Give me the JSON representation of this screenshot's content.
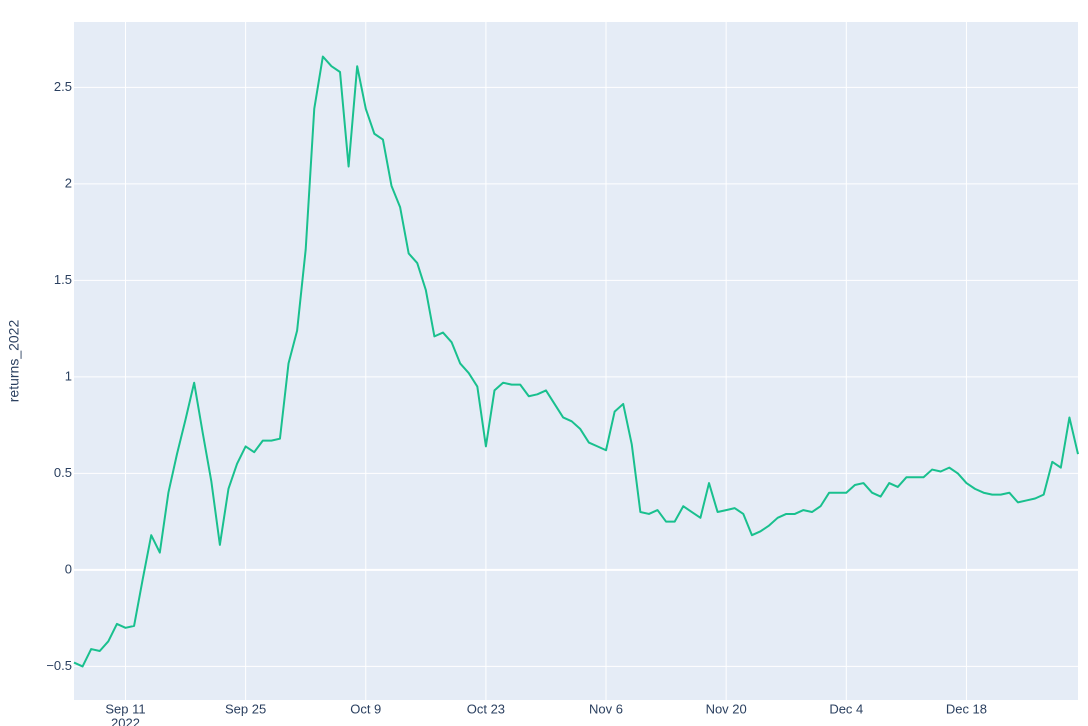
{
  "chart_data": {
    "type": "line",
    "y_label": "returns_2022",
    "color": "#19c08e",
    "grid": true,
    "x": [
      "2022-09-05",
      "2022-09-06",
      "2022-09-07",
      "2022-09-08",
      "2022-09-09",
      "2022-09-10",
      "2022-09-11",
      "2022-09-12",
      "2022-09-13",
      "2022-09-14",
      "2022-09-15",
      "2022-09-16",
      "2022-09-17",
      "2022-09-18",
      "2022-09-19",
      "2022-09-20",
      "2022-09-21",
      "2022-09-22",
      "2022-09-23",
      "2022-09-24",
      "2022-09-25",
      "2022-09-26",
      "2022-09-27",
      "2022-09-28",
      "2022-09-29",
      "2022-09-30",
      "2022-10-01",
      "2022-10-02",
      "2022-10-03",
      "2022-10-04",
      "2022-10-05",
      "2022-10-06",
      "2022-10-07",
      "2022-10-08",
      "2022-10-09",
      "2022-10-10",
      "2022-10-11",
      "2022-10-12",
      "2022-10-13",
      "2022-10-14",
      "2022-10-15",
      "2022-10-16",
      "2022-10-17",
      "2022-10-18",
      "2022-10-19",
      "2022-10-20",
      "2022-10-21",
      "2022-10-22",
      "2022-10-23",
      "2022-10-24",
      "2022-10-25",
      "2022-10-26",
      "2022-10-27",
      "2022-10-28",
      "2022-10-29",
      "2022-10-30",
      "2022-10-31",
      "2022-11-01",
      "2022-11-02",
      "2022-11-03",
      "2022-11-04",
      "2022-11-05",
      "2022-11-06",
      "2022-11-07",
      "2022-11-08",
      "2022-11-09",
      "2022-11-10",
      "2022-11-11",
      "2022-11-12",
      "2022-11-13",
      "2022-11-14",
      "2022-11-15",
      "2022-11-16",
      "2022-11-17",
      "2022-11-18",
      "2022-11-19",
      "2022-11-20",
      "2022-11-21",
      "2022-11-22",
      "2022-11-23",
      "2022-11-24",
      "2022-11-25",
      "2022-11-26",
      "2022-11-27",
      "2022-11-28",
      "2022-11-29",
      "2022-11-30",
      "2022-12-01",
      "2022-12-02",
      "2022-12-03",
      "2022-12-04",
      "2022-12-05",
      "2022-12-06",
      "2022-12-07",
      "2022-12-08",
      "2022-12-09",
      "2022-12-10",
      "2022-12-11",
      "2022-12-12",
      "2022-12-13",
      "2022-12-14",
      "2022-12-15",
      "2022-12-16",
      "2022-12-17",
      "2022-12-18",
      "2022-12-19",
      "2022-12-20",
      "2022-12-21",
      "2022-12-22",
      "2022-12-23",
      "2022-12-24",
      "2022-12-25",
      "2022-12-26",
      "2022-12-27",
      "2022-12-28",
      "2022-12-29",
      "2022-12-30",
      "2022-12-31"
    ],
    "values": [
      -0.48,
      -0.5,
      -0.41,
      -0.42,
      -0.37,
      -0.28,
      -0.3,
      -0.29,
      -0.05,
      0.18,
      0.09,
      0.4,
      0.6,
      0.78,
      0.97,
      0.71,
      0.46,
      0.13,
      0.42,
      0.55,
      0.64,
      0.61,
      0.67,
      0.67,
      0.68,
      1.07,
      1.24,
      1.66,
      2.39,
      2.66,
      2.61,
      2.58,
      2.09,
      2.61,
      2.39,
      2.26,
      2.23,
      1.99,
      1.88,
      1.64,
      1.59,
      1.45,
      1.21,
      1.23,
      1.18,
      1.07,
      1.02,
      0.95,
      0.64,
      0.93,
      0.97,
      0.96,
      0.96,
      0.9,
      0.91,
      0.93,
      0.86,
      0.79,
      0.77,
      0.73,
      0.66,
      0.64,
      0.62,
      0.82,
      0.86,
      0.65,
      0.3,
      0.29,
      0.31,
      0.25,
      0.25,
      0.33,
      0.3,
      0.27,
      0.45,
      0.3,
      0.31,
      0.32,
      0.29,
      0.18,
      0.2,
      0.23,
      0.27,
      0.29,
      0.29,
      0.31,
      0.3,
      0.33,
      0.4,
      0.4,
      0.4,
      0.44,
      0.45,
      0.4,
      0.38,
      0.45,
      0.43,
      0.48,
      0.48,
      0.48,
      0.52,
      0.51,
      0.53,
      0.5,
      0.45,
      0.42,
      0.4,
      0.39,
      0.39,
      0.4,
      0.35,
      0.36,
      0.37,
      0.39,
      0.56,
      0.53,
      0.79,
      0.6
    ],
    "xlim": [
      "2022-09-05",
      "2022-12-31"
    ],
    "xticks": [
      {
        "value": "2022-09-11",
        "label": "Sep 11",
        "sublabel": "2022"
      },
      {
        "value": "2022-09-25",
        "label": "Sep 25"
      },
      {
        "value": "2022-10-09",
        "label": "Oct 9"
      },
      {
        "value": "2022-10-23",
        "label": "Oct 23"
      },
      {
        "value": "2022-11-06",
        "label": "Nov 6"
      },
      {
        "value": "2022-11-20",
        "label": "Nov 20"
      },
      {
        "value": "2022-12-04",
        "label": "Dec 4"
      },
      {
        "value": "2022-12-18",
        "label": "Dec 18"
      }
    ],
    "ylim": [
      -0.674,
      2.839
    ],
    "yticks": [
      {
        "value": -0.5,
        "label": "−0.5"
      },
      0,
      0.5,
      1,
      1.5,
      2,
      2.5
    ]
  }
}
